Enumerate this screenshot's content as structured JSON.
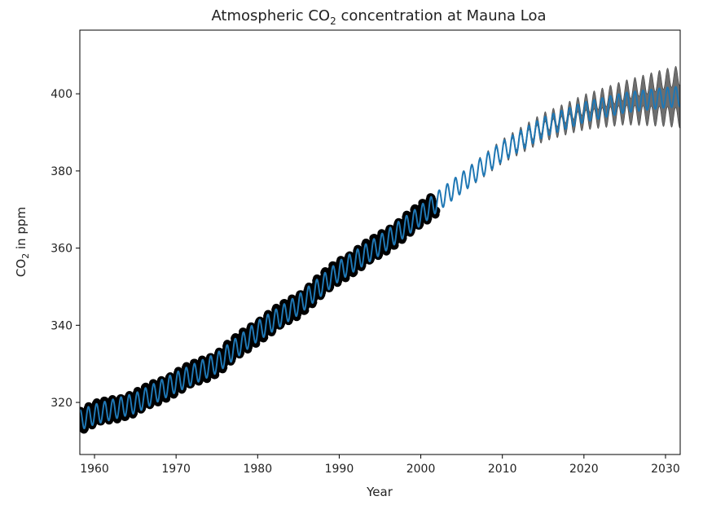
{
  "chart_data": {
    "type": "line",
    "title_main": "Atmospheric CO",
    "title_sub": "2",
    "title_rest": " concentration at Mauna Loa",
    "xlabel": "Year",
    "ylabel_main": "CO",
    "ylabel_sub": "2",
    "ylabel_rest": " in ppm",
    "xlim": [
      1958.2,
      2031.8
    ],
    "ylim": [
      306.5,
      416.5
    ],
    "xticks": [
      1960,
      1970,
      1980,
      1990,
      2000,
      2010,
      2020,
      2030
    ],
    "yticks": [
      320,
      340,
      360,
      380,
      400
    ],
    "grid": false,
    "legend": false,
    "colors": {
      "observed": "#000000",
      "prediction": "#1f77b4",
      "uncertainty": "#555555"
    },
    "series": [
      {
        "kind": "scatter",
        "x_range": [
          1958.2,
          2001.9
        ],
        "trend_points": [
          [
            1958,
            315.2
          ],
          [
            1960,
            316.9
          ],
          [
            1965,
            319.8
          ],
          [
            1970,
            325.2
          ],
          [
            1975,
            330.2
          ],
          [
            1980,
            338.5
          ],
          [
            1985,
            345.3
          ],
          [
            1990,
            354.1
          ],
          [
            1995,
            360.8
          ],
          [
            2000,
            368.5
          ],
          [
            2002,
            372.0
          ]
        ],
        "seasonal_amplitude": 2.6
      },
      {
        "kind": "line",
        "x_range": [
          1958.2,
          2031.8
        ],
        "trend_points": [
          [
            1958,
            315.2
          ],
          [
            1960,
            316.9
          ],
          [
            1965,
            319.8
          ],
          [
            1970,
            325.2
          ],
          [
            1975,
            330.2
          ],
          [
            1980,
            338.5
          ],
          [
            1985,
            345.3
          ],
          [
            1990,
            354.1
          ],
          [
            1995,
            360.8
          ],
          [
            2000,
            368.5
          ],
          [
            2002,
            372.0
          ],
          [
            2005,
            376.9
          ],
          [
            2010,
            385.1
          ],
          [
            2015,
            391.3
          ],
          [
            2020,
            395.2
          ],
          [
            2025,
            397.7
          ],
          [
            2030,
            399.0
          ],
          [
            2032,
            399.3
          ]
        ],
        "seasonal_amplitude": 2.6
      },
      {
        "kind": "band",
        "x_range": [
          2003.0,
          2031.8
        ],
        "band_halfwidth_points": [
          [
            2003,
            0.0
          ],
          [
            2010,
            0.6
          ],
          [
            2018,
            1.6
          ],
          [
            2025,
            3.2
          ],
          [
            2032,
            5.6
          ]
        ]
      }
    ]
  }
}
